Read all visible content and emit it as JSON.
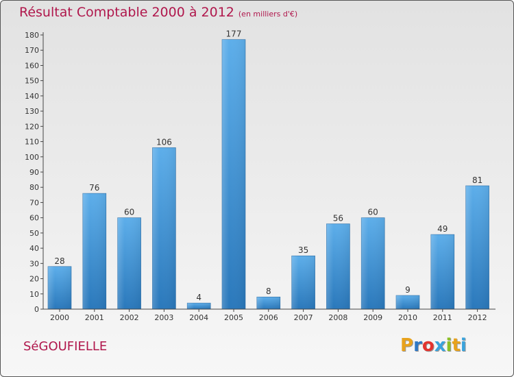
{
  "header": {
    "title": "Résultat Comptable 2000 à 2012",
    "subtitle": "(en milliers d'€)"
  },
  "footer": {
    "commune": "SéGOUFIELLE",
    "brand_letters": [
      "P",
      "r",
      "o",
      "x",
      "i",
      "t",
      "i"
    ],
    "brand_colors": [
      "#e8a21c",
      "#2f78c4",
      "#e3342f",
      "#3aa3dc",
      "#8cbf26",
      "#e8a21c",
      "#3aa3dc"
    ]
  },
  "colors": {
    "title": "#b0174c",
    "bar_light": "#5daeea",
    "bar_dark": "#2a78bb",
    "axis": "#444444"
  },
  "chart_data": {
    "type": "bar",
    "title": "Résultat Comptable 2000 à 2012",
    "xlabel": "",
    "ylabel": "",
    "categories": [
      "2000",
      "2001",
      "2002",
      "2003",
      "2004",
      "2005",
      "2006",
      "2007",
      "2008",
      "2009",
      "2010",
      "2011",
      "2012"
    ],
    "values": [
      28,
      76,
      60,
      106,
      4,
      177,
      8,
      35,
      56,
      60,
      9,
      49,
      81
    ],
    "ylim": [
      0,
      180
    ],
    "yticks": [
      0,
      10,
      20,
      30,
      40,
      50,
      60,
      70,
      80,
      90,
      100,
      110,
      120,
      130,
      140,
      150,
      160,
      170,
      180
    ],
    "grid": false
  }
}
